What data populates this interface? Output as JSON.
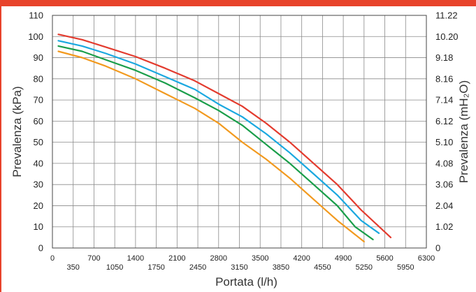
{
  "chart_data": {
    "type": "line",
    "xlabel": "Portata (l/h)",
    "ylabel": "Prevalenza (kPa)",
    "ylabel_right": "Prevalenza (mH₂O)",
    "xlim": [
      0,
      6300
    ],
    "ylim": [
      0,
      110
    ],
    "grid": true,
    "x_ticks": [
      "0",
      "350",
      "700",
      "1050",
      "1400",
      "1750",
      "2100",
      "2450",
      "2800",
      "3150",
      "3500",
      "3850",
      "4200",
      "4550",
      "4900",
      "5250",
      "5600",
      "5950",
      "6300"
    ],
    "y_ticks": [
      "0",
      "10",
      "20",
      "30",
      "40",
      "50",
      "60",
      "70",
      "80",
      "90",
      "100",
      "110"
    ],
    "y_right_ticks": [
      "0",
      "1.02",
      "2.04",
      "3.06",
      "4.08",
      "5.10",
      "6.12",
      "7.14",
      "8.16",
      "9.18",
      "10.20",
      "11.22"
    ],
    "colors": {
      "bar": "#e8432b",
      "red": "#e33b2e",
      "blue": "#1aa8e0",
      "green": "#1a9e4a",
      "orange": "#f29a1f"
    },
    "series": [
      {
        "color": "#e33b2e",
        "points": [
          [
            100,
            101
          ],
          [
            500,
            98.5
          ],
          [
            900,
            95
          ],
          [
            1400,
            90.5
          ],
          [
            1900,
            85
          ],
          [
            2400,
            79
          ],
          [
            2800,
            73
          ],
          [
            3200,
            67
          ],
          [
            3600,
            59
          ],
          [
            4000,
            50
          ],
          [
            4400,
            40
          ],
          [
            4800,
            30
          ],
          [
            5200,
            18
          ],
          [
            5700,
            5
          ]
        ]
      },
      {
        "color": "#1aa8e0",
        "points": [
          [
            100,
            98
          ],
          [
            500,
            95.5
          ],
          [
            900,
            92
          ],
          [
            1400,
            87
          ],
          [
            1900,
            81
          ],
          [
            2400,
            75
          ],
          [
            2800,
            68
          ],
          [
            3200,
            62
          ],
          [
            3600,
            54
          ],
          [
            4000,
            45
          ],
          [
            4400,
            35
          ],
          [
            4800,
            25
          ],
          [
            5200,
            13
          ],
          [
            5500,
            7
          ]
        ]
      },
      {
        "color": "#1a9e4a",
        "points": [
          [
            100,
            95.5
          ],
          [
            500,
            93
          ],
          [
            900,
            89
          ],
          [
            1400,
            84
          ],
          [
            1900,
            78
          ],
          [
            2400,
            71
          ],
          [
            2800,
            65
          ],
          [
            3200,
            58
          ],
          [
            3600,
            49
          ],
          [
            4000,
            40
          ],
          [
            4400,
            30
          ],
          [
            4800,
            20
          ],
          [
            5100,
            10
          ],
          [
            5400,
            4
          ]
        ]
      },
      {
        "color": "#f29a1f",
        "points": [
          [
            100,
            93
          ],
          [
            500,
            90
          ],
          [
            900,
            86
          ],
          [
            1400,
            80
          ],
          [
            1900,
            73
          ],
          [
            2400,
            66
          ],
          [
            2800,
            59
          ],
          [
            3200,
            50
          ],
          [
            3600,
            42
          ],
          [
            4000,
            33
          ],
          [
            4400,
            23
          ],
          [
            4800,
            13
          ],
          [
            5250,
            3
          ]
        ]
      }
    ]
  }
}
